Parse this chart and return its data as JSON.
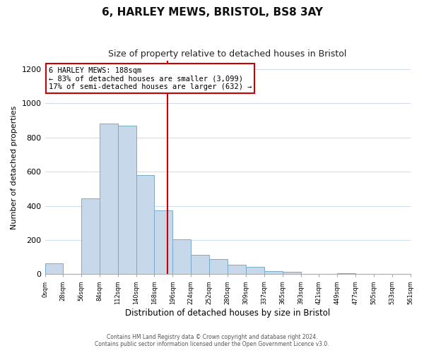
{
  "title": "6, HARLEY MEWS, BRISTOL, BS8 3AY",
  "subtitle": "Size of property relative to detached houses in Bristol",
  "xlabel": "Distribution of detached houses by size in Bristol",
  "ylabel": "Number of detached properties",
  "bar_color": "#c8d8eb",
  "bar_edge_color": "#7aaac8",
  "reference_line_x": 188,
  "reference_line_color": "#cc0000",
  "annotation_title": "6 HARLEY MEWS: 188sqm",
  "annotation_line1": "← 83% of detached houses are smaller (3,099)",
  "annotation_line2": "17% of semi-detached houses are larger (632) →",
  "annotation_box_color": "#ffffff",
  "annotation_box_edge_color": "#cc0000",
  "bin_edges": [
    0,
    28,
    56,
    84,
    112,
    140,
    168,
    196,
    224,
    252,
    280,
    309,
    337,
    365,
    393,
    421,
    449,
    477,
    505,
    533,
    561
  ],
  "bin_heights": [
    65,
    0,
    445,
    880,
    870,
    580,
    375,
    205,
    115,
    88,
    55,
    45,
    20,
    15,
    0,
    0,
    5,
    0,
    0,
    0
  ],
  "ylim": [
    0,
    1250
  ],
  "yticks": [
    0,
    200,
    400,
    600,
    800,
    1000,
    1200
  ],
  "footer_line1": "Contains HM Land Registry data © Crown copyright and database right 2024.",
  "footer_line2": "Contains public sector information licensed under the Open Government Licence v3.0.",
  "background_color": "#ffffff",
  "grid_color": "#ccddee"
}
